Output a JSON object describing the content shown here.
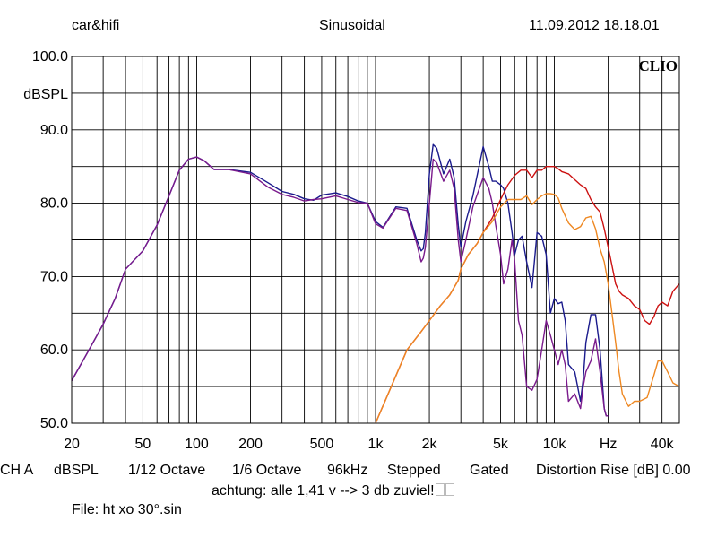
{
  "header": {
    "left": "car&hifi",
    "center": "Sinusoidal",
    "right": "11.09.2012 18.18.01",
    "logo": "CLIO"
  },
  "footer": {
    "ch": "CH A",
    "unit": "dBSPL",
    "smoothing1": "1/12 Octave",
    "smoothing2": "1/6 Octave",
    "rate": "96kHz",
    "mode": "Stepped",
    "gate": "Gated",
    "distortion": "Distortion Rise [dB] 0.00",
    "note": "achtung: alle 1,41 v --> 3 db zuviel!",
    "file": "File: ht xo 30°.sin"
  },
  "chart_data": {
    "type": "line",
    "title": "Sinusoidal",
    "xlabel": "Hz",
    "ylabel": "dBSPL",
    "xscale": "log",
    "xlim": [
      20,
      50000
    ],
    "ylim": [
      50,
      100
    ],
    "x_tick_labels": [
      "20",
      "50",
      "100",
      "200",
      "500",
      "1k",
      "2k",
      "5k",
      "10k",
      "Hz",
      "40k"
    ],
    "y_tick_labels": [
      "100.0",
      "90.0",
      "80.0",
      "70.0",
      "60.0",
      "50.0"
    ],
    "grid": true,
    "colors": {
      "blue": "#1a1a8c",
      "purple": "#7a1a8c",
      "red": "#cc1111",
      "orange": "#ee8822"
    },
    "series": [
      {
        "color": "#1a1a8c",
        "x": [
          20,
          25,
          30,
          35,
          40,
          50,
          60,
          70,
          80,
          90,
          100,
          110,
          125,
          150,
          200,
          250,
          300,
          350,
          400,
          450,
          500,
          600,
          700,
          800,
          900,
          1000,
          1100,
          1300,
          1500,
          1700,
          1800,
          1850,
          1900,
          2000,
          2100,
          2200,
          2400,
          2600,
          2750,
          2900,
          3000,
          3200,
          3500,
          4000,
          4300,
          4500,
          4700,
          5000,
          5200,
          5500,
          5800,
          6000,
          6300,
          6600,
          7000,
          7500,
          8000,
          8500,
          9000,
          9500,
          10000,
          10500,
          11000,
          11500,
          12000,
          13000,
          14000,
          14500,
          15000,
          16000,
          17000,
          18000,
          19000,
          19500,
          20000
        ],
        "y": [
          55.8,
          60,
          63.5,
          67,
          71,
          73.5,
          77,
          81,
          84.5,
          86,
          86.3,
          85.8,
          84.6,
          84.6,
          84.2,
          82.8,
          81.6,
          81.2,
          80.6,
          80.4,
          81.1,
          81.4,
          80.9,
          80.3,
          80.0,
          77.5,
          76.7,
          79.5,
          79.3,
          75.0,
          73.5,
          73.8,
          76,
          84,
          88,
          87.5,
          84,
          86,
          83.5,
          77,
          74.0,
          77.5,
          81,
          87.7,
          85,
          83,
          83,
          82.5,
          82,
          80,
          76,
          73,
          75,
          75.5,
          72,
          68.5,
          76,
          75.5,
          73,
          65,
          67,
          66.3,
          66.5,
          64,
          58,
          57,
          53,
          56,
          61,
          64.8,
          64.8,
          60,
          52,
          51,
          51
        ]
      },
      {
        "color": "#7a1a8c",
        "x": [
          20,
          25,
          30,
          35,
          40,
          50,
          60,
          70,
          80,
          90,
          100,
          110,
          125,
          150,
          200,
          250,
          300,
          350,
          400,
          450,
          500,
          600,
          700,
          800,
          900,
          1000,
          1100,
          1300,
          1500,
          1700,
          1800,
          1850,
          1900,
          2000,
          2100,
          2200,
          2400,
          2600,
          2750,
          2900,
          3000,
          3200,
          3500,
          4000,
          4300,
          4500,
          4700,
          5000,
          5200,
          5500,
          5800,
          6000,
          6300,
          6600,
          7000,
          7500,
          8000,
          8500,
          9000,
          9500,
          10000,
          10500,
          11000,
          11500,
          12000,
          13000,
          14000,
          14500,
          15000,
          16000,
          17000,
          18000,
          19000,
          19500,
          20000
        ],
        "y": [
          55.8,
          60,
          63.5,
          67,
          71,
          73.5,
          77,
          81,
          84.5,
          86,
          86.3,
          85.8,
          84.6,
          84.6,
          84.0,
          82.2,
          81.2,
          80.8,
          80.3,
          80.5,
          80.6,
          81.0,
          80.5,
          80.1,
          80.0,
          77.2,
          76.6,
          79.3,
          79.0,
          74.5,
          72.0,
          72.5,
          74,
          80,
          86,
          85.5,
          83,
          84.5,
          82,
          75,
          72.0,
          75,
          79.5,
          83.5,
          82,
          80,
          77,
          73,
          69,
          71,
          75,
          72,
          64,
          62,
          55,
          54.5,
          56,
          60,
          64,
          62,
          60,
          58,
          60,
          58,
          53,
          54,
          52,
          55,
          57,
          58.5,
          61.5,
          57,
          52,
          51,
          51
        ]
      },
      {
        "color": "#cc1111",
        "x": [
          1000,
          1200,
          1500,
          1800,
          2000,
          2300,
          2600,
          2900,
          3000,
          3300,
          3700,
          4000,
          4500,
          5000,
          5500,
          6000,
          6500,
          7000,
          7500,
          8000,
          8500,
          9000,
          9500,
          10000,
          10500,
          11000,
          12000,
          13000,
          14000,
          15000,
          16000,
          17000,
          18000,
          19000,
          20000,
          21000,
          22000,
          23000,
          24000,
          26000,
          28000,
          30000,
          32000,
          34000,
          36000,
          38000,
          40000,
          43000,
          46000,
          50000
        ],
        "y": [
          50,
          54.5,
          60,
          62.5,
          64,
          66,
          67.5,
          69.5,
          71,
          73,
          74.5,
          76,
          78,
          80.5,
          82.5,
          83.8,
          84.5,
          84.5,
          83.5,
          84.5,
          84.5,
          85.0,
          85.0,
          85.0,
          84.7,
          84.3,
          84.0,
          83.2,
          82.5,
          82.0,
          80.5,
          79.5,
          78.8,
          76.5,
          74.0,
          71.5,
          69.0,
          68.0,
          67.5,
          67,
          66,
          65.5,
          64,
          63.5,
          64.5,
          66,
          66.5,
          66,
          68,
          69
        ]
      },
      {
        "color": "#ee8822",
        "x": [
          1000,
          1200,
          1500,
          1800,
          2000,
          2300,
          2600,
          2900,
          3000,
          3300,
          3700,
          4000,
          4500,
          5000,
          5500,
          6000,
          6500,
          7000,
          7500,
          8000,
          8500,
          9000,
          9500,
          10000,
          10500,
          11000,
          12000,
          13000,
          14000,
          15000,
          16000,
          17000,
          18000,
          19000,
          20000,
          21000,
          22000,
          23000,
          24000,
          26000,
          28000,
          30000,
          33000,
          36000,
          38000,
          40000,
          43000,
          46000,
          50000
        ],
        "y": [
          50,
          54.5,
          60,
          62.5,
          64,
          66,
          67.5,
          69.5,
          71,
          73,
          74.5,
          76,
          77.5,
          79.5,
          80.5,
          80.5,
          80.5,
          81.0,
          79.8,
          80.5,
          81.0,
          81.3,
          81.3,
          81.2,
          80.7,
          79.3,
          77.3,
          76.4,
          76.8,
          78.0,
          78.2,
          76.5,
          73.8,
          72.0,
          69.0,
          65.0,
          61.0,
          57.0,
          54.0,
          52.3,
          53,
          53,
          53.5,
          56.5,
          58.5,
          58.5,
          57,
          55.5,
          55
        ]
      }
    ]
  }
}
